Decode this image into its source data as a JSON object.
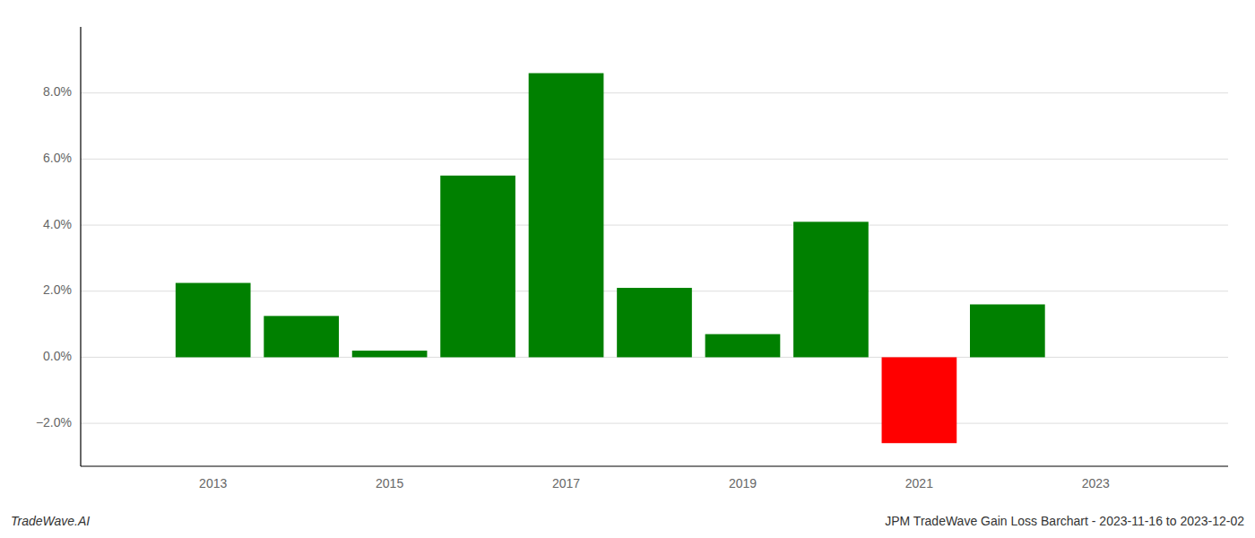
{
  "chart_data": {
    "type": "bar",
    "title": "JPM TradeWave Gain Loss Barchart - 2023-11-16 to 2023-12-02",
    "annotations": [
      {
        "text": "TradeWave.AI"
      }
    ],
    "x": [
      2013,
      2014,
      2015,
      2016,
      2017,
      2018,
      2019,
      2020,
      2021,
      2022
    ],
    "values": [
      0.0225,
      0.0125,
      0.002,
      0.055,
      0.086,
      0.021,
      0.007,
      0.041,
      -0.026,
      0.016
    ],
    "colors": [
      "#008000",
      "#008000",
      "#008000",
      "#008000",
      "#008000",
      "#008000",
      "#008000",
      "#008000",
      "#ff0000",
      "#008000"
    ],
    "xlim": [
      2011.5,
      2024.5
    ],
    "xticks": [
      2013,
      2015,
      2017,
      2019,
      2021,
      2023
    ],
    "ylim": [
      -0.033,
      0.1
    ],
    "yticks": [
      {
        "value": -0.02,
        "label": "−2.0%"
      },
      {
        "value": 0.0,
        "label": "0.0%"
      },
      {
        "value": 0.02,
        "label": "2.0%"
      },
      {
        "value": 0.04,
        "label": "4.0%"
      },
      {
        "value": 0.06,
        "label": "6.0%"
      },
      {
        "value": 0.08,
        "label": "8.0%"
      }
    ],
    "grid": true
  }
}
